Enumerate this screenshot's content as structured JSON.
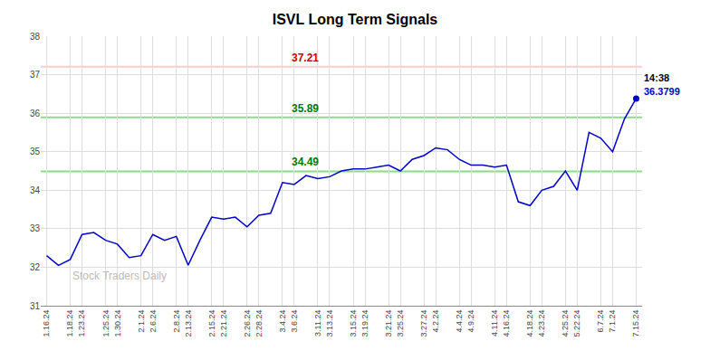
{
  "chart_data": {
    "type": "line",
    "title": "ISVL Long Term Signals",
    "watermark": "Stock Traders Daily",
    "categories": [
      "1.16.24",
      null,
      "1.18.24",
      "1.23.24",
      null,
      "1.25.24",
      "1.30.24",
      null,
      "2.1.24",
      "2.6.24",
      null,
      "2.8.24",
      "2.13.24",
      null,
      "2.15.24",
      "2.21.24",
      null,
      "2.26.24",
      "2.28.24",
      null,
      "3.4.24",
      "3.6.24",
      null,
      "3.11.24",
      "3.13.24",
      null,
      "3.15.24",
      "3.19.24",
      null,
      "3.21.24",
      "3.25.24",
      null,
      "3.27.24",
      "4.2.24",
      null,
      "4.4.24",
      "4.9.24",
      null,
      "4.11.24",
      "4.16.24",
      null,
      "4.18.24",
      "4.23.24",
      null,
      "4.25.24",
      "5.22.24",
      null,
      "6.7.24",
      "7.1.24",
      null,
      "7.15.24"
    ],
    "values": [
      32.3,
      32.05,
      32.2,
      32.85,
      32.9,
      32.7,
      32.6,
      32.25,
      32.3,
      32.85,
      32.7,
      32.8,
      32.05,
      32.7,
      33.3,
      33.25,
      33.3,
      33.05,
      33.35,
      33.4,
      34.2,
      34.15,
      34.38,
      34.3,
      34.35,
      34.5,
      34.55,
      34.55,
      34.6,
      34.65,
      34.5,
      34.8,
      34.9,
      35.1,
      35.05,
      34.8,
      34.65,
      34.65,
      34.6,
      34.65,
      33.7,
      33.6,
      34.0,
      34.1,
      34.5,
      34.0,
      35.5,
      35.35,
      35.0,
      35.85,
      36.38
    ],
    "color": "#0000cc",
    "hlines": [
      {
        "y": 37.21,
        "color": "#ffcccc",
        "label": "37.21",
        "label_color": "#cc0000"
      },
      {
        "y": 35.89,
        "color": "#88dd88",
        "label": "35.89",
        "label_color": "#007700"
      },
      {
        "y": 34.49,
        "color": "#88dd88",
        "label": "34.49",
        "label_color": "#007700"
      }
    ],
    "annotations": [
      {
        "text": "14:38",
        "color": "#000000"
      },
      {
        "text": "36.3799",
        "color": "#0000cc"
      }
    ],
    "ylim": [
      31,
      38
    ],
    "yticks": [
      31,
      32,
      33,
      34,
      35,
      36,
      37,
      38
    ],
    "grid": true
  }
}
